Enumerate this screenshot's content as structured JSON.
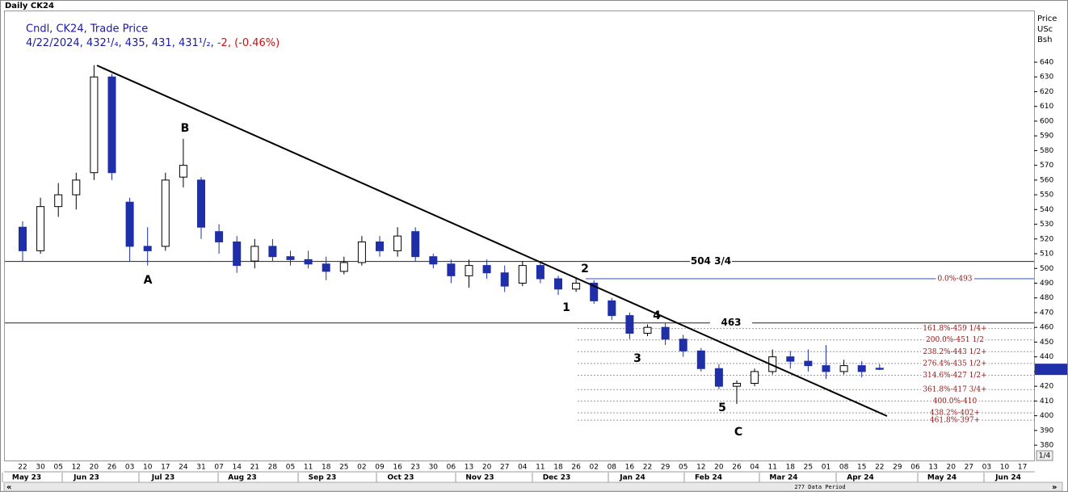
{
  "chart_data": {
    "type": "candlestick",
    "title": "Daily CK24",
    "subtitle": "Cndl, CK24, Trade Price",
    "quote_text": "4/22/2024, 432¹/₄, 435, 431, 431¹/₂,",
    "change_text": "-2, (-0.46%)",
    "axis_title": [
      "Price",
      "USc",
      "Bsh"
    ],
    "categories": [
      "22",
      "30",
      "05",
      "12",
      "20",
      "26",
      "03",
      "10",
      "17",
      "24",
      "31",
      "07",
      "14",
      "21",
      "28",
      "05",
      "11",
      "18",
      "25",
      "02",
      "09",
      "16",
      "23",
      "30",
      "06",
      "13",
      "20",
      "27",
      "04",
      "11",
      "18",
      "26",
      "02",
      "08",
      "16",
      "22",
      "29",
      "05",
      "12",
      "20",
      "26",
      "04",
      "11",
      "18",
      "25",
      "01",
      "08",
      "15",
      "22",
      "29",
      "06",
      "13",
      "20",
      "27",
      "03",
      "10",
      "17"
    ],
    "months": [
      "May 23",
      "Jun 23",
      "Jul 23",
      "Aug 23",
      "Sep 23",
      "Oct 23",
      "Nov 23",
      "Dec 23",
      "Jan 24",
      "Feb 24",
      "Mar 24",
      "Apr 24",
      "May 24",
      "Jun 24"
    ],
    "open": [
      528,
      512,
      542,
      550,
      565,
      630,
      545,
      515,
      515,
      562,
      560,
      525,
      518,
      505,
      515,
      508,
      506,
      503,
      498,
      504,
      518,
      512,
      525,
      508,
      503,
      495,
      502,
      497,
      490,
      502,
      493,
      486,
      490,
      478,
      468,
      456,
      460,
      452,
      444,
      432,
      420,
      422,
      430,
      440,
      437,
      434,
      430,
      434,
      432.25,
      null,
      null,
      null,
      null,
      null,
      null,
      null,
      null
    ],
    "high": [
      532,
      548,
      558,
      565,
      638,
      632,
      548,
      528,
      565,
      588,
      562,
      530,
      522,
      520,
      520,
      512,
      512,
      508,
      508,
      522,
      522,
      528,
      528,
      510,
      506,
      506,
      506,
      502,
      505,
      504,
      495,
      493,
      492,
      480,
      470,
      462,
      463,
      455,
      446,
      435,
      424,
      432,
      445,
      444,
      445,
      448,
      438,
      437,
      435,
      null,
      null,
      null,
      null,
      null,
      null,
      null,
      null
    ],
    "low": [
      505,
      510,
      535,
      540,
      560,
      560,
      505,
      502,
      512,
      555,
      520,
      510,
      497,
      500,
      505,
      502,
      500,
      492,
      496,
      502,
      508,
      508,
      505,
      500,
      490,
      487,
      493,
      484,
      488,
      490,
      482,
      484,
      476,
      465,
      452,
      454,
      448,
      440,
      430,
      418,
      408,
      420,
      428,
      432,
      430,
      425,
      428,
      426,
      431,
      null,
      null,
      null,
      null,
      null,
      null,
      null,
      null
    ],
    "close": [
      512,
      542,
      550,
      560,
      630,
      565,
      515,
      512,
      560,
      570,
      528,
      518,
      502,
      515,
      508,
      506,
      503,
      498,
      504,
      518,
      512,
      522,
      508,
      503,
      495,
      502,
      497,
      488,
      502,
      493,
      486,
      490,
      478,
      468,
      456,
      460,
      452,
      444,
      432,
      420,
      422,
      430,
      440,
      437,
      434,
      430,
      434,
      430,
      431.5,
      null,
      null,
      null,
      null,
      null,
      null,
      null,
      null
    ],
    "up_color": "#ffffff",
    "down_color": "#1f2fa8",
    "ylim": [
      370,
      674
    ],
    "yticks": [
      380,
      390,
      400,
      410,
      420,
      430,
      440,
      450,
      460,
      470,
      480,
      490,
      500,
      510,
      520,
      530,
      540,
      550,
      560,
      570,
      580,
      590,
      600,
      610,
      620,
      630,
      640
    ],
    "levels": [
      {
        "value": 504.75,
        "label": "504 3/4"
      },
      {
        "value": 463,
        "label": "463"
      }
    ],
    "fib": [
      {
        "value": 493,
        "label": "0.0%-493"
      },
      {
        "value": 459.25,
        "label": "161.8%-459 1/4+"
      },
      {
        "value": 451.5,
        "label": "200.0%-451 1/2"
      },
      {
        "value": 443.5,
        "label": "238.2%-443 1/2+"
      },
      {
        "value": 435.5,
        "label": "276.4%-435 1/2+"
      },
      {
        "value": 427.5,
        "label": "314.6%-427 1/2+"
      },
      {
        "value": 417.75,
        "label": "361.8%-417 3/4+"
      },
      {
        "value": 410,
        "label": "400.0%-410"
      },
      {
        "value": 402,
        "label": "438.2%-402+"
      },
      {
        "value": 397,
        "label": "461.8%-397+"
      }
    ],
    "last_price": 431.5,
    "waves": [
      "A",
      "B",
      "1",
      "2",
      "3",
      "4",
      "5",
      "C"
    ],
    "footer": "277 Data Period",
    "page": "1/4"
  }
}
